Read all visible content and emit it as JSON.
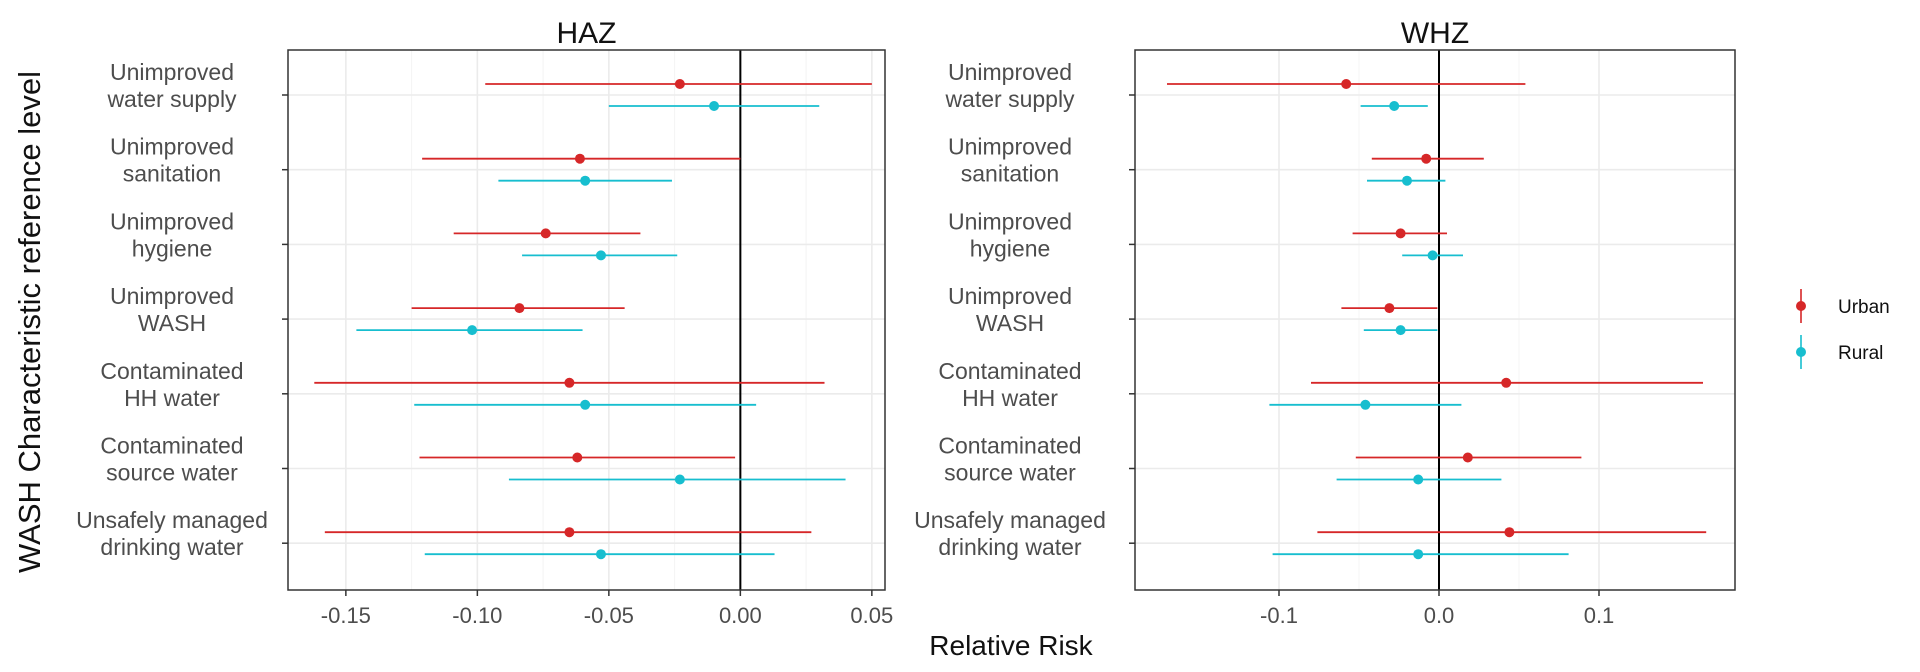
{
  "figure": {
    "ylabel": "WASH Characteristic reference level",
    "xlabel": "Relative Risk"
  },
  "legend": {
    "placement": "right",
    "items": [
      {
        "name": "Urban",
        "color": "#d62728"
      },
      {
        "name": "Rural",
        "color": "#17becf"
      }
    ]
  },
  "chart_data": [
    {
      "type": "scatter",
      "subtype": "forest-plot",
      "title": "HAZ",
      "xlim": [
        -0.172,
        0.055
      ],
      "xticks": [
        -0.15,
        -0.1,
        -0.05,
        0.0,
        0.05
      ],
      "xtick_labels": [
        "-0.15",
        "-0.10",
        "-0.05",
        "0.00",
        "0.05"
      ],
      "reference_line_x": 0,
      "grid": true,
      "categories": [
        "Unimproved water supply",
        "Unimproved sanitation",
        "Unimproved hygiene",
        "Unimproved WASH",
        "Contaminated HH water",
        "Contaminated source water",
        "Unsafely managed drinking water"
      ],
      "category_labels": [
        [
          "Unimproved",
          "water supply"
        ],
        [
          "Unimproved",
          "sanitation"
        ],
        [
          "Unimproved",
          "hygiene"
        ],
        [
          "Unimproved",
          "WASH"
        ],
        [
          "Contaminated",
          "HH water"
        ],
        [
          "Contaminated",
          "source water"
        ],
        [
          "Unsafely managed",
          "drinking water"
        ]
      ],
      "series": [
        {
          "name": "Urban",
          "color": "#d62728",
          "estimate": [
            -0.023,
            -0.061,
            -0.074,
            -0.084,
            -0.065,
            -0.062,
            -0.065
          ],
          "lower": [
            -0.097,
            -0.121,
            -0.109,
            -0.125,
            -0.162,
            -0.122,
            -0.158
          ],
          "upper": [
            0.05,
            0.0,
            -0.038,
            -0.044,
            0.032,
            -0.002,
            0.027
          ]
        },
        {
          "name": "Rural",
          "color": "#17becf",
          "estimate": [
            -0.01,
            -0.059,
            -0.053,
            -0.102,
            -0.059,
            -0.023,
            -0.053
          ],
          "lower": [
            -0.05,
            -0.092,
            -0.083,
            -0.146,
            -0.124,
            -0.088,
            -0.12
          ],
          "upper": [
            0.03,
            -0.026,
            -0.024,
            -0.06,
            0.006,
            0.04,
            0.013
          ]
        }
      ]
    },
    {
      "type": "scatter",
      "subtype": "forest-plot",
      "title": "WHZ",
      "xlim": [
        -0.19,
        0.185
      ],
      "xticks": [
        -0.1,
        0.0,
        0.1
      ],
      "xtick_labels": [
        "-0.1",
        "0.0",
        "0.1"
      ],
      "reference_line_x": 0,
      "grid": true,
      "categories": [
        "Unimproved water supply",
        "Unimproved sanitation",
        "Unimproved hygiene",
        "Unimproved WASH",
        "Contaminated HH water",
        "Contaminated source water",
        "Unsafely managed drinking water"
      ],
      "category_labels": [
        [
          "Unimproved",
          "water supply"
        ],
        [
          "Unimproved",
          "sanitation"
        ],
        [
          "Unimproved",
          "hygiene"
        ],
        [
          "Unimproved",
          "WASH"
        ],
        [
          "Contaminated",
          "HH water"
        ],
        [
          "Contaminated",
          "source water"
        ],
        [
          "Unsafely managed",
          "drinking water"
        ]
      ],
      "series": [
        {
          "name": "Urban",
          "color": "#d62728",
          "estimate": [
            -0.058,
            -0.008,
            -0.024,
            -0.031,
            0.042,
            0.018,
            0.044
          ],
          "lower": [
            -0.17,
            -0.042,
            -0.054,
            -0.061,
            -0.08,
            -0.052,
            -0.076
          ],
          "upper": [
            0.054,
            0.028,
            0.005,
            -0.001,
            0.165,
            0.089,
            0.167
          ]
        },
        {
          "name": "Rural",
          "color": "#17becf",
          "estimate": [
            -0.028,
            -0.02,
            -0.004,
            -0.024,
            -0.046,
            -0.013,
            -0.013
          ],
          "lower": [
            -0.049,
            -0.045,
            -0.023,
            -0.047,
            -0.106,
            -0.064,
            -0.104
          ],
          "upper": [
            -0.007,
            0.004,
            0.015,
            -0.001,
            0.014,
            0.039,
            0.081
          ]
        }
      ]
    }
  ]
}
